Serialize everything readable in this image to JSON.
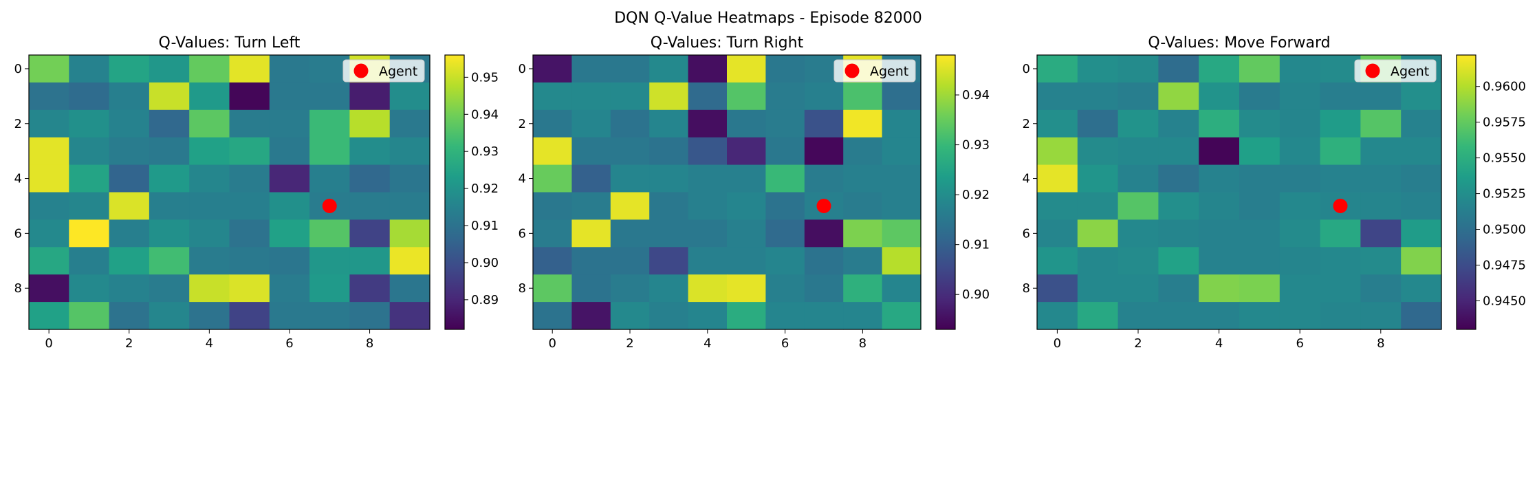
{
  "figure": {
    "suptitle": "DQN Q-Value Heatmaps - Episode 82000"
  },
  "chart_data": [
    {
      "type": "heatmap",
      "title": "Q-Values: Turn Left",
      "xlabel": "",
      "ylabel": "",
      "x_ticks": [
        0,
        2,
        4,
        6,
        8
      ],
      "y_ticks": [
        0,
        2,
        4,
        6,
        8
      ],
      "colormap": "viridis",
      "vmin": 0.882,
      "vmax": 0.956,
      "colorbar_ticks": [
        "0.89",
        "0.90",
        "0.91",
        "0.92",
        "0.93",
        "0.94",
        "0.95"
      ],
      "colorbar_tick_values": [
        0.89,
        0.9,
        0.91,
        0.92,
        0.93,
        0.94,
        0.95
      ],
      "agent": {
        "x": 7,
        "y": 5,
        "label": "Agent",
        "color": "#ff0000"
      },
      "legend_position": "top-right",
      "z": [
        [
          0.94,
          0.915,
          0.925,
          0.921,
          0.938,
          0.953,
          0.912,
          0.913,
          0.951,
          0.912
        ],
        [
          0.91,
          0.908,
          0.914,
          0.95,
          0.922,
          0.883,
          0.912,
          0.912,
          0.888,
          0.918
        ],
        [
          0.916,
          0.919,
          0.915,
          0.907,
          0.937,
          0.913,
          0.913,
          0.932,
          0.948,
          0.912
        ],
        [
          0.953,
          0.916,
          0.913,
          0.912,
          0.924,
          0.926,
          0.912,
          0.932,
          0.918,
          0.916
        ],
        [
          0.953,
          0.925,
          0.906,
          0.922,
          0.916,
          0.913,
          0.89,
          0.914,
          0.907,
          0.911
        ],
        [
          0.915,
          0.916,
          0.952,
          0.914,
          0.914,
          0.914,
          0.919,
          0.913,
          0.913,
          0.913
        ],
        [
          0.917,
          0.956,
          0.914,
          0.919,
          0.916,
          0.91,
          0.924,
          0.936,
          0.897,
          0.946
        ],
        [
          0.926,
          0.914,
          0.924,
          0.933,
          0.913,
          0.912,
          0.911,
          0.921,
          0.921,
          0.954
        ],
        [
          0.885,
          0.917,
          0.915,
          0.913,
          0.95,
          0.952,
          0.913,
          0.922,
          0.895,
          0.911
        ],
        [
          0.924,
          0.936,
          0.91,
          0.916,
          0.91,
          0.897,
          0.912,
          0.912,
          0.91,
          0.893
        ]
      ]
    },
    {
      "type": "heatmap",
      "title": "Q-Values: Turn Right",
      "xlabel": "",
      "ylabel": "",
      "x_ticks": [
        0,
        2,
        4,
        6,
        8
      ],
      "y_ticks": [
        0,
        2,
        4,
        6,
        8
      ],
      "colormap": "viridis",
      "vmin": 0.893,
      "vmax": 0.948,
      "colorbar_ticks": [
        "0.90",
        "0.91",
        "0.92",
        "0.93",
        "0.94"
      ],
      "colorbar_tick_values": [
        0.9,
        0.91,
        0.92,
        0.93,
        0.94
      ],
      "agent": {
        "x": 7,
        "y": 5,
        "label": "Agent",
        "color": "#ff0000"
      },
      "legend_position": "top-right",
      "z": [
        [
          0.896,
          0.915,
          0.915,
          0.919,
          0.895,
          0.946,
          0.915,
          0.916,
          0.946,
          0.915
        ],
        [
          0.919,
          0.919,
          0.919,
          0.944,
          0.912,
          0.933,
          0.916,
          0.917,
          0.932,
          0.913
        ],
        [
          0.915,
          0.918,
          0.914,
          0.918,
          0.895,
          0.915,
          0.916,
          0.907,
          0.947,
          0.918
        ],
        [
          0.946,
          0.915,
          0.915,
          0.914,
          0.908,
          0.899,
          0.915,
          0.894,
          0.916,
          0.918
        ],
        [
          0.935,
          0.91,
          0.918,
          0.918,
          0.917,
          0.917,
          0.93,
          0.916,
          0.917,
          0.917
        ],
        [
          0.915,
          0.916,
          0.946,
          0.915,
          0.917,
          0.918,
          0.914,
          0.917,
          0.916,
          0.917
        ],
        [
          0.916,
          0.946,
          0.915,
          0.915,
          0.915,
          0.917,
          0.912,
          0.895,
          0.937,
          0.934
        ],
        [
          0.91,
          0.914,
          0.914,
          0.905,
          0.917,
          0.917,
          0.918,
          0.914,
          0.916,
          0.942
        ],
        [
          0.934,
          0.914,
          0.916,
          0.918,
          0.945,
          0.946,
          0.917,
          0.915,
          0.928,
          0.918
        ],
        [
          0.914,
          0.896,
          0.919,
          0.917,
          0.918,
          0.927,
          0.918,
          0.918,
          0.918,
          0.926
        ]
      ]
    },
    {
      "type": "heatmap",
      "title": "Q-Values: Move Forward",
      "xlabel": "",
      "ylabel": "",
      "x_ticks": [
        0,
        2,
        4,
        6,
        8
      ],
      "y_ticks": [
        0,
        2,
        4,
        6,
        8
      ],
      "colormap": "viridis",
      "vmin": 0.943,
      "vmax": 0.9622,
      "colorbar_ticks": [
        "0.9450",
        "0.9475",
        "0.9500",
        "0.9525",
        "0.9550",
        "0.9575",
        "0.9600"
      ],
      "colorbar_tick_values": [
        0.945,
        0.9475,
        0.95,
        0.9525,
        0.955,
        0.9575,
        0.96
      ],
      "agent": {
        "x": 7,
        "y": 5,
        "label": "Agent",
        "color": "#ff0000"
      },
      "legend_position": "top-right",
      "z": [
        [
          0.9548,
          0.9525,
          0.9522,
          0.9498,
          0.9545,
          0.9575,
          0.952,
          0.9522,
          0.9578,
          0.952
        ],
        [
          0.9515,
          0.9515,
          0.9512,
          0.959,
          0.9528,
          0.951,
          0.9518,
          0.9512,
          0.9512,
          0.9525
        ],
        [
          0.9525,
          0.95,
          0.9528,
          0.9515,
          0.955,
          0.9522,
          0.9518,
          0.9535,
          0.957,
          0.9515
        ],
        [
          0.9592,
          0.9522,
          0.952,
          0.952,
          0.9432,
          0.9538,
          0.952,
          0.9552,
          0.952,
          0.952
        ],
        [
          0.9615,
          0.953,
          0.9515,
          0.9502,
          0.9515,
          0.9512,
          0.9512,
          0.9515,
          0.9515,
          0.9512
        ],
        [
          0.9522,
          0.9522,
          0.957,
          0.9525,
          0.9518,
          0.9512,
          0.952,
          0.9518,
          0.9518,
          0.9515
        ],
        [
          0.9518,
          0.9588,
          0.952,
          0.9518,
          0.9515,
          0.9515,
          0.9522,
          0.9545,
          0.947,
          0.9535
        ],
        [
          0.953,
          0.952,
          0.9522,
          0.954,
          0.9515,
          0.9515,
          0.9518,
          0.952,
          0.9522,
          0.9585
        ],
        [
          0.9478,
          0.952,
          0.952,
          0.9512,
          0.9585,
          0.9583,
          0.952,
          0.952,
          0.9512,
          0.952
        ],
        [
          0.952,
          0.9545,
          0.9515,
          0.9515,
          0.9515,
          0.952,
          0.952,
          0.9518,
          0.9518,
          0.9495
        ]
      ]
    }
  ]
}
